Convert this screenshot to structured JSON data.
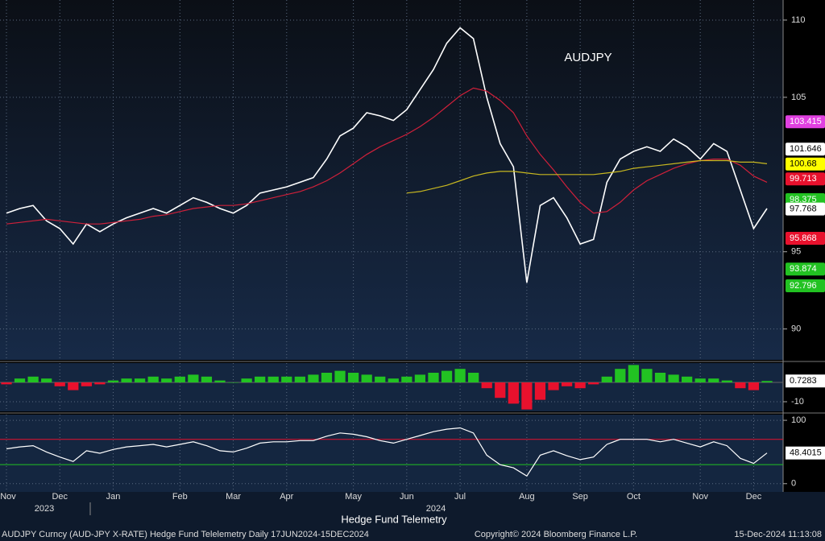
{
  "chart_data": [
    {
      "type": "line",
      "title": "AUDJPY",
      "categories": [
        "Nov",
        null,
        null,
        null,
        "Dec",
        null,
        null,
        null,
        "Jan",
        null,
        null,
        null,
        null,
        "Feb",
        null,
        null,
        null,
        "Mar",
        null,
        null,
        null,
        "Apr",
        null,
        null,
        null,
        null,
        "May",
        null,
        null,
        null,
        "Jun",
        null,
        null,
        null,
        "Jul",
        null,
        null,
        null,
        null,
        "Aug",
        null,
        null,
        null,
        "Sep",
        null,
        null,
        null,
        "Oct",
        null,
        null,
        null,
        null,
        "Nov",
        null,
        null,
        null,
        "Dec",
        null
      ],
      "series": [
        {
          "color": "#ffffff",
          "values": [
            97.5,
            97.8,
            98.0,
            97.0,
            96.5,
            95.5,
            96.8,
            96.3,
            96.8,
            97.2,
            97.5,
            97.8,
            97.5,
            98.0,
            98.5,
            98.2,
            97.8,
            97.5,
            98.0,
            98.8,
            99.0,
            99.2,
            99.5,
            99.8,
            101.0,
            102.5,
            103.0,
            104.0,
            103.8,
            103.5,
            104.2,
            105.5,
            106.8,
            108.5,
            109.5,
            108.8,
            105.0,
            102.0,
            100.5,
            93.0,
            98.0,
            98.5,
            97.2,
            95.5,
            95.8,
            99.5,
            101.0,
            101.5,
            101.8,
            101.5,
            102.3,
            101.8,
            101.0,
            102.0,
            101.5,
            99.0,
            96.5,
            97.8
          ]
        },
        {
          "color": "#d0203a",
          "values": [
            96.8,
            96.9,
            97.0,
            97.1,
            97.0,
            96.9,
            96.8,
            96.8,
            96.9,
            97.0,
            97.1,
            97.3,
            97.4,
            97.6,
            97.8,
            97.9,
            98.0,
            98.0,
            98.1,
            98.3,
            98.5,
            98.7,
            98.9,
            99.2,
            99.6,
            100.1,
            100.7,
            101.3,
            101.8,
            102.2,
            102.6,
            103.1,
            103.7,
            104.4,
            105.1,
            105.6,
            105.4,
            104.8,
            104.0,
            102.5,
            101.3,
            100.3,
            99.2,
            98.2,
            97.5,
            97.6,
            98.2,
            99.0,
            99.6,
            100.0,
            100.4,
            100.7,
            100.9,
            101.0,
            101.0,
            100.6,
            99.9,
            99.5
          ]
        },
        {
          "color": "#c8b820",
          "values": [
            null,
            null,
            null,
            null,
            null,
            null,
            null,
            null,
            null,
            null,
            null,
            null,
            null,
            null,
            null,
            null,
            null,
            null,
            null,
            null,
            null,
            null,
            null,
            null,
            null,
            null,
            null,
            null,
            null,
            null,
            98.8,
            98.9,
            99.1,
            99.3,
            99.6,
            99.9,
            100.1,
            100.2,
            100.2,
            100.1,
            100.0,
            100.0,
            100.0,
            100.0,
            100.0,
            100.1,
            100.2,
            100.4,
            100.5,
            100.6,
            100.7,
            100.8,
            100.9,
            100.9,
            100.9,
            100.8,
            100.8,
            100.7
          ]
        }
      ],
      "ylim": [
        88,
        111.3
      ],
      "yticks": [
        90,
        95,
        105,
        110
      ],
      "grid": true,
      "price_labels": [
        {
          "value": 103.415,
          "color": "#e040e0"
        },
        {
          "value": 101.646,
          "color": "#ffffff"
        },
        {
          "value": 100.68,
          "color": "#ffff00"
        },
        {
          "value": 99.713,
          "color": "#e8112d"
        },
        {
          "value": 98.375,
          "color": "#22c222"
        },
        {
          "value": 97.768,
          "color": "#ffffff"
        },
        {
          "value": 95.868,
          "color": "#e8112d"
        },
        {
          "value": 93.874,
          "color": "#22c222"
        },
        {
          "value": 92.796,
          "color": "#22c222"
        }
      ]
    },
    {
      "type": "bar",
      "colors": [
        "#22c222",
        "#e8112d"
      ],
      "values": [
        -1,
        2,
        3,
        2,
        -2,
        -4,
        -2,
        -1,
        1,
        2,
        2,
        3,
        2,
        3,
        4,
        3,
        1,
        0,
        2,
        3,
        3,
        3,
        3,
        4,
        5,
        6,
        5,
        4,
        3,
        2,
        3,
        4,
        5,
        6,
        7,
        5,
        -3,
        -8,
        -11,
        -14,
        -9,
        -4,
        -2,
        -3,
        -1,
        3,
        7,
        9,
        7,
        5,
        4,
        3,
        2,
        2,
        1,
        -3,
        -4,
        0.7283
      ],
      "ylim": [
        -15,
        10
      ],
      "yticks": [
        -10
      ],
      "grid": true
    },
    {
      "type": "line",
      "color": "#ffffff",
      "values": [
        55,
        58,
        60,
        50,
        42,
        35,
        52,
        48,
        54,
        58,
        60,
        62,
        58,
        62,
        66,
        60,
        52,
        50,
        56,
        64,
        66,
        66,
        68,
        68,
        75,
        80,
        78,
        74,
        68,
        64,
        70,
        76,
        82,
        86,
        88,
        80,
        45,
        30,
        25,
        12,
        45,
        52,
        44,
        38,
        42,
        62,
        70,
        70,
        70,
        66,
        70,
        64,
        58,
        66,
        60,
        40,
        32,
        48.4015
      ],
      "ylim": [
        -13,
        109
      ],
      "yticks": [
        0,
        100
      ],
      "grid": true,
      "hlines": [
        {
          "value": 70,
          "color": "#e8112d"
        },
        {
          "value": 30,
          "color": "#22c222"
        }
      ]
    }
  ],
  "x_title": "Hedge Fund Telemetry",
  "years": [
    "2023",
    "2024"
  ],
  "footer": {
    "left": "AUDJPY Curncy (AUD-JPY X-RATE) Hedge Fund Telelemetry  Daily 17JUN2024-15DEC2024",
    "center": "Copyright© 2024 Bloomberg Finance L.P.",
    "right": "15-Dec-2024 11:13:08"
  }
}
